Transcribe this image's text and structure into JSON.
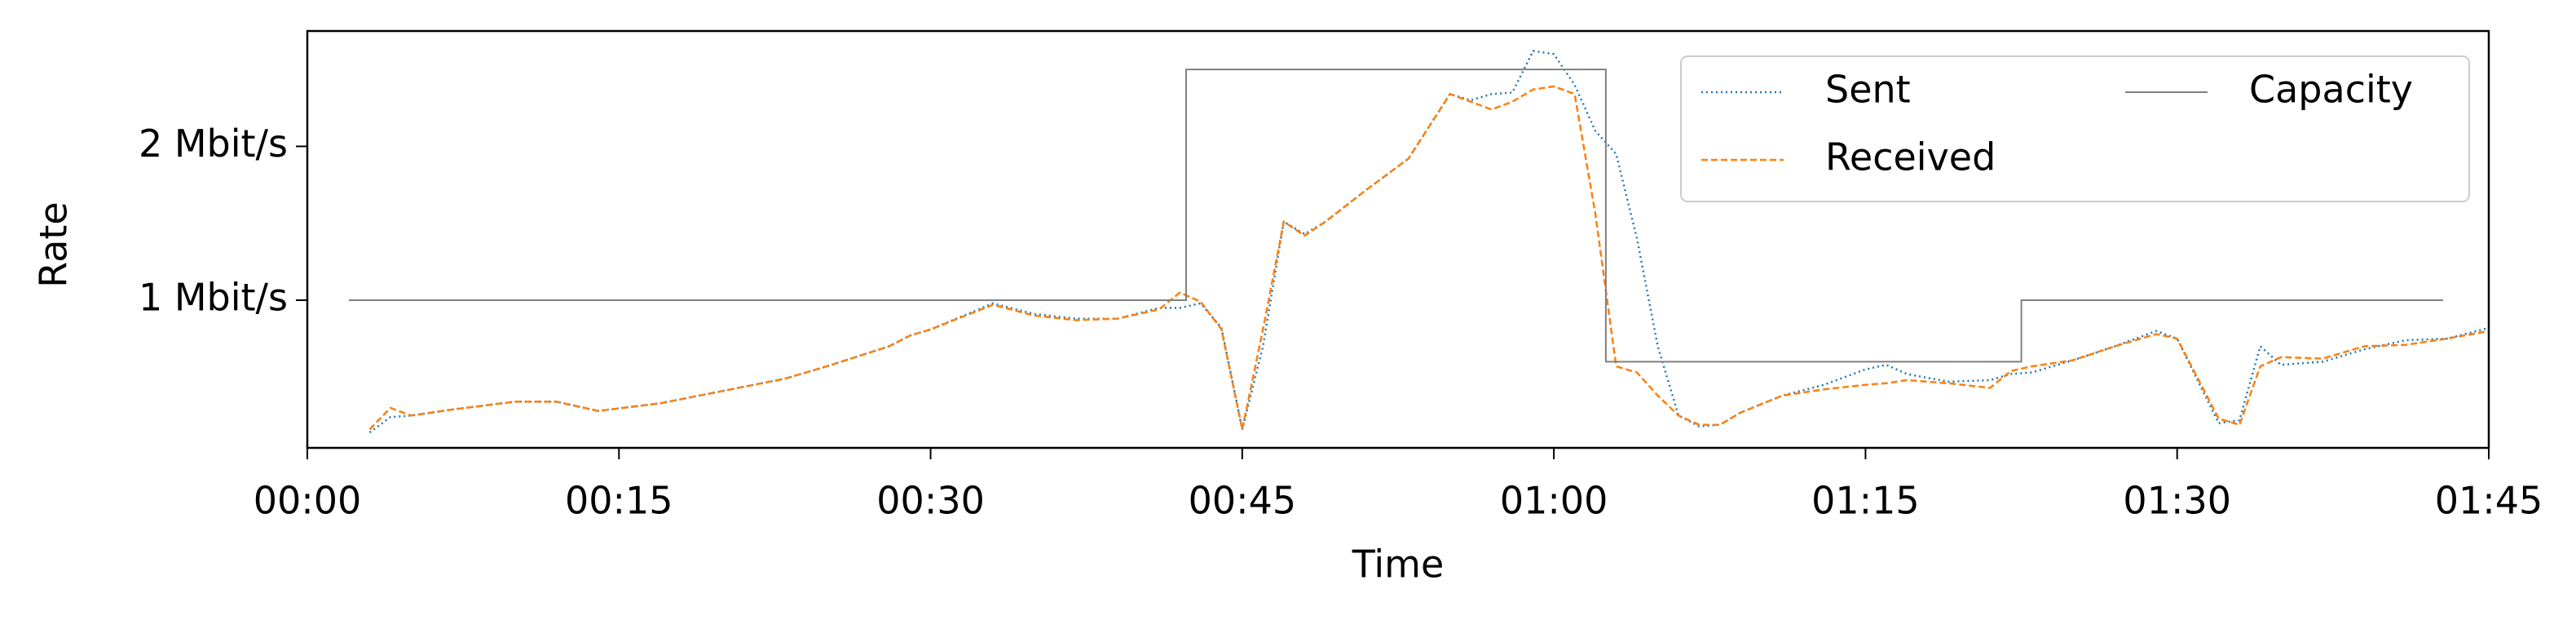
{
  "chart_data": {
    "type": "line",
    "xlabel": "Time",
    "ylabel": "Rate",
    "x": [
      3,
      4,
      5,
      7,
      10,
      12,
      14,
      17,
      20,
      23,
      25,
      28,
      29,
      30,
      33,
      35,
      37,
      39,
      41,
      42,
      43,
      44,
      45,
      46,
      47,
      48,
      49,
      51,
      53,
      55,
      56,
      57,
      58,
      59,
      60,
      61,
      62,
      63,
      64,
      65,
      66,
      67,
      68,
      69,
      71,
      73,
      75,
      76,
      77,
      79,
      81,
      82,
      83,
      85,
      87,
      89,
      90,
      92,
      93,
      94,
      95,
      97,
      99,
      101,
      103,
      105
    ],
    "series": [
      {
        "name": "Sent",
        "color": "#1f77b4",
        "style": "dotted",
        "values": [
          0.14,
          0.24,
          0.25,
          0.29,
          0.34,
          0.34,
          0.28,
          0.33,
          0.41,
          0.49,
          0.57,
          0.7,
          0.77,
          0.81,
          0.98,
          0.91,
          0.88,
          0.88,
          0.95,
          0.95,
          0.98,
          0.82,
          0.16,
          0.7,
          1.51,
          1.43,
          1.51,
          1.72,
          1.92,
          2.34,
          2.3,
          2.34,
          2.35,
          2.62,
          2.6,
          2.4,
          2.1,
          1.95,
          1.4,
          0.7,
          0.25,
          0.18,
          0.19,
          0.27,
          0.38,
          0.45,
          0.55,
          0.58,
          0.52,
          0.47,
          0.48,
          0.52,
          0.53,
          0.61,
          0.7,
          0.8,
          0.75,
          0.2,
          0.22,
          0.7,
          0.58,
          0.6,
          0.68,
          0.74,
          0.75,
          0.82
        ]
      },
      {
        "name": "Received",
        "color": "#ff7f0e",
        "style": "dashed",
        "values": [
          0.16,
          0.3,
          0.25,
          0.29,
          0.34,
          0.34,
          0.28,
          0.33,
          0.41,
          0.49,
          0.57,
          0.7,
          0.77,
          0.81,
          0.97,
          0.9,
          0.87,
          0.88,
          0.94,
          1.05,
          0.99,
          0.81,
          0.16,
          0.81,
          1.51,
          1.42,
          1.51,
          1.72,
          1.92,
          2.34,
          2.29,
          2.24,
          2.29,
          2.37,
          2.39,
          2.34,
          1.56,
          0.57,
          0.53,
          0.38,
          0.25,
          0.19,
          0.19,
          0.27,
          0.38,
          0.42,
          0.45,
          0.46,
          0.48,
          0.46,
          0.43,
          0.54,
          0.57,
          0.61,
          0.7,
          0.78,
          0.75,
          0.23,
          0.19,
          0.57,
          0.63,
          0.62,
          0.7,
          0.71,
          0.75,
          0.8
        ]
      },
      {
        "name": "Capacity",
        "color": "#808080",
        "style": "solid",
        "x": [
          2,
          42.3,
          42.3,
          62.5,
          62.5,
          82.5,
          82.5,
          102.8
        ],
        "values": [
          1,
          1,
          2.5,
          2.5,
          0.6,
          0.6,
          1,
          1
        ]
      }
    ],
    "xlim": [
      0,
      105
    ],
    "xticks": [
      {
        "value": 0,
        "label": "00:00"
      },
      {
        "value": 15,
        "label": "00:15"
      },
      {
        "value": 30,
        "label": "00:30"
      },
      {
        "value": 45,
        "label": "00:45"
      },
      {
        "value": 60,
        "label": "01:00"
      },
      {
        "value": 75,
        "label": "01:15"
      },
      {
        "value": 90,
        "label": "01:30"
      },
      {
        "value": 105,
        "label": "01:45"
      }
    ],
    "ylim": [
      0.04,
      2.75
    ],
    "yticks": [
      {
        "value": 1,
        "label": "1 Mbit/s"
      },
      {
        "value": 2,
        "label": "2 Mbit/s"
      }
    ],
    "legend": "upper right",
    "legend_columns": 2
  }
}
